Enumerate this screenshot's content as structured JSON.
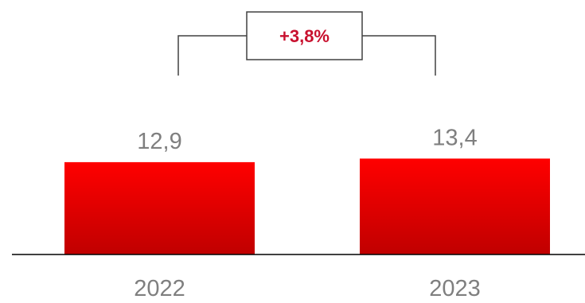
{
  "chart_data": {
    "type": "bar",
    "categories": [
      "2022",
      "2023"
    ],
    "values": [
      12.9,
      13.4
    ],
    "value_labels": [
      "12,9",
      "13,4"
    ],
    "change_annotation": "+3,8%",
    "title": "",
    "xlabel": "",
    "ylabel": "",
    "grid": false,
    "legend": "none",
    "colors": {
      "bar_top": "#ff0000",
      "bar_bottom": "#c00000",
      "label_text": "#7f7f7f",
      "annotation_text": "#c8102e",
      "axis": "#000000",
      "bracket": "#404040"
    }
  }
}
